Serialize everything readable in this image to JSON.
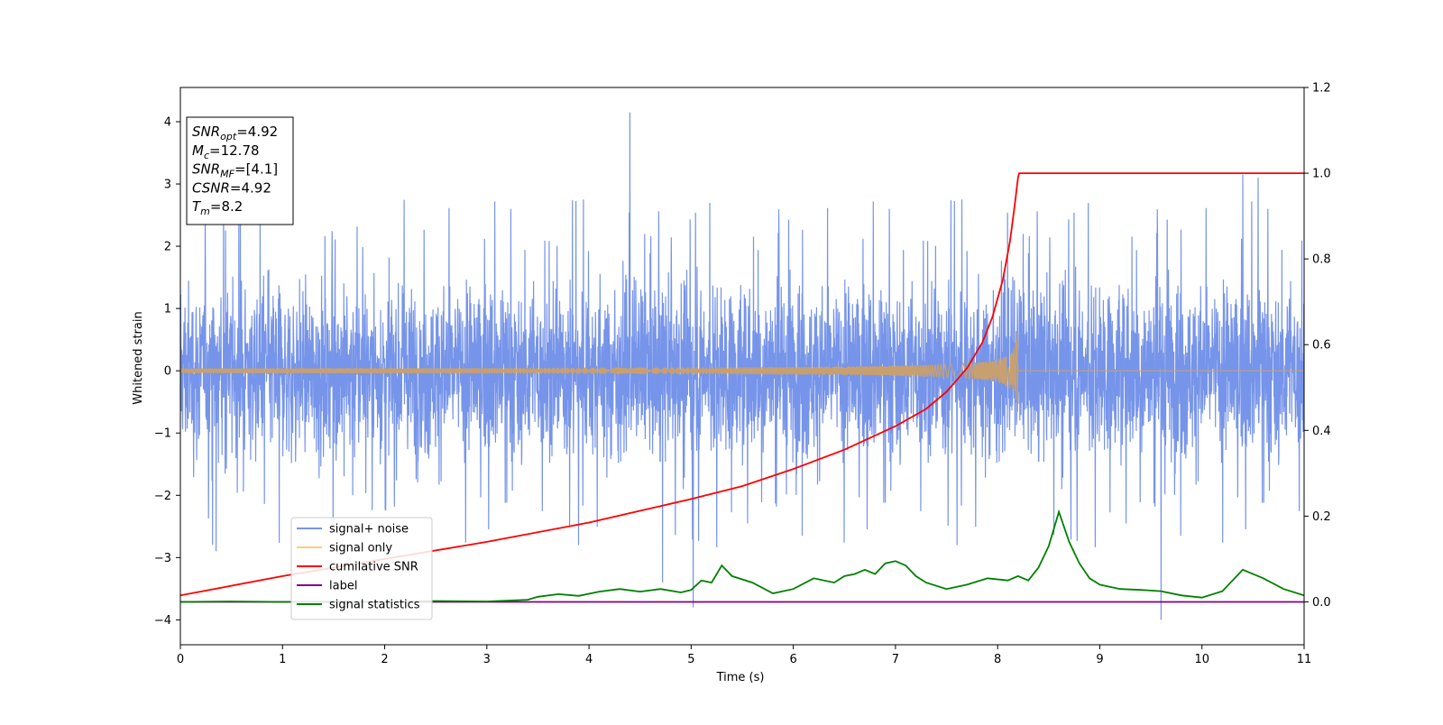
{
  "chart_data": {
    "type": "line",
    "xlabel": "Time (s)",
    "ylabel": "Whitened strain",
    "xlim": [
      0,
      11
    ],
    "ylim": [
      -4.4,
      4.55
    ],
    "y2lim": [
      -0.1,
      1.2
    ],
    "x_ticks": [
      0,
      1,
      2,
      3,
      4,
      5,
      6,
      7,
      8,
      9,
      10,
      11
    ],
    "y_ticks": [
      -4,
      -3,
      -2,
      -1,
      0,
      1,
      2,
      3,
      4
    ],
    "y2_ticks": [
      "0.0",
      "0.2",
      "0.4",
      "0.6",
      "0.8",
      "1.0",
      "1.2"
    ],
    "grid": false,
    "legend_position": "lower-left",
    "legend": [
      {
        "name": "signal+ noise",
        "color": "#6f8ee8"
      },
      {
        "name": "signal only",
        "color": "#ffcc80"
      },
      {
        "name": "cumilative SNR",
        "color": "#ff0000"
      },
      {
        "name": "label",
        "color": "#800080"
      },
      {
        "name": "signal statistics",
        "color": "#008000"
      }
    ],
    "info_box": [
      {
        "sym": "SNR",
        "sub": "opt",
        "value": "=4.92"
      },
      {
        "sym": "M",
        "sub": "c",
        "value": "=12.78"
      },
      {
        "sym": "SNR",
        "sub": "MF",
        "value": "=[4.1]"
      },
      {
        "sym": "CSNR",
        "sub": "",
        "value": "=4.92"
      },
      {
        "sym": "T",
        "sub": "m",
        "value": "=8.2"
      }
    ],
    "series": [
      {
        "name": "signal+ noise",
        "axis": "left",
        "color": "#6f8ee8",
        "noise_envelope": {
          "typical_abs_max": 2.3,
          "min": -4.0,
          "max": 4.15
        },
        "notable_peaks": [
          [
            4.4,
            4.15
          ],
          [
            10.4,
            3.15
          ],
          [
            10.55,
            3.1
          ],
          [
            9.6,
            -4.0
          ],
          [
            5.02,
            -3.8
          ],
          [
            4.72,
            -3.4
          ],
          [
            0.35,
            -2.9
          ]
        ]
      },
      {
        "name": "signal only",
        "axis": "left",
        "color": "#c8a070",
        "chirp": {
          "start": 0,
          "merger": 8.2,
          "end_amplitude": 0.75,
          "start_amplitude": 0.02
        }
      },
      {
        "name": "cumilative SNR",
        "axis": "right",
        "color": "#ff0000",
        "x": [
          0,
          1,
          2,
          3,
          4,
          5,
          5.5,
          6,
          6.5,
          7,
          7.3,
          7.5,
          7.7,
          7.85,
          7.95,
          8.05,
          8.12,
          8.17,
          8.2,
          8.21,
          11
        ],
        "y": [
          0.015,
          0.06,
          0.1,
          0.14,
          0.185,
          0.24,
          0.27,
          0.31,
          0.355,
          0.41,
          0.45,
          0.49,
          0.545,
          0.605,
          0.665,
          0.75,
          0.84,
          0.93,
          0.99,
          1.0,
          1.0
        ]
      },
      {
        "name": "label",
        "axis": "right",
        "color": "#800080",
        "x": [
          0,
          11
        ],
        "y": [
          0.0,
          0.0
        ]
      },
      {
        "name": "signal statistics",
        "axis": "right",
        "color": "#008000",
        "x": [
          0,
          0.5,
          1,
          1.5,
          2,
          2.5,
          3,
          3.4,
          3.5,
          3.7,
          3.9,
          4.1,
          4.3,
          4.5,
          4.7,
          4.9,
          5.0,
          5.1,
          5.2,
          5.3,
          5.4,
          5.6,
          5.8,
          6.0,
          6.2,
          6.4,
          6.5,
          6.6,
          6.7,
          6.8,
          6.9,
          7.0,
          7.1,
          7.2,
          7.3,
          7.5,
          7.7,
          7.9,
          8.1,
          8.2,
          8.3,
          8.4,
          8.5,
          8.6,
          8.7,
          8.8,
          8.9,
          9.0,
          9.2,
          9.4,
          9.6,
          9.8,
          10.0,
          10.2,
          10.4,
          10.5,
          10.6,
          10.8,
          11.0
        ],
        "y": [
          0.0,
          0.001,
          0.0,
          0.001,
          0.0,
          0.002,
          0.001,
          0.005,
          0.012,
          0.018,
          0.014,
          0.024,
          0.03,
          0.024,
          0.03,
          0.022,
          0.028,
          0.05,
          0.045,
          0.085,
          0.06,
          0.045,
          0.02,
          0.03,
          0.055,
          0.045,
          0.06,
          0.065,
          0.075,
          0.065,
          0.09,
          0.095,
          0.085,
          0.06,
          0.045,
          0.03,
          0.04,
          0.055,
          0.05,
          0.06,
          0.05,
          0.08,
          0.13,
          0.21,
          0.14,
          0.09,
          0.055,
          0.04,
          0.03,
          0.028,
          0.025,
          0.015,
          0.01,
          0.025,
          0.075,
          0.065,
          0.055,
          0.03,
          0.015
        ]
      }
    ]
  }
}
